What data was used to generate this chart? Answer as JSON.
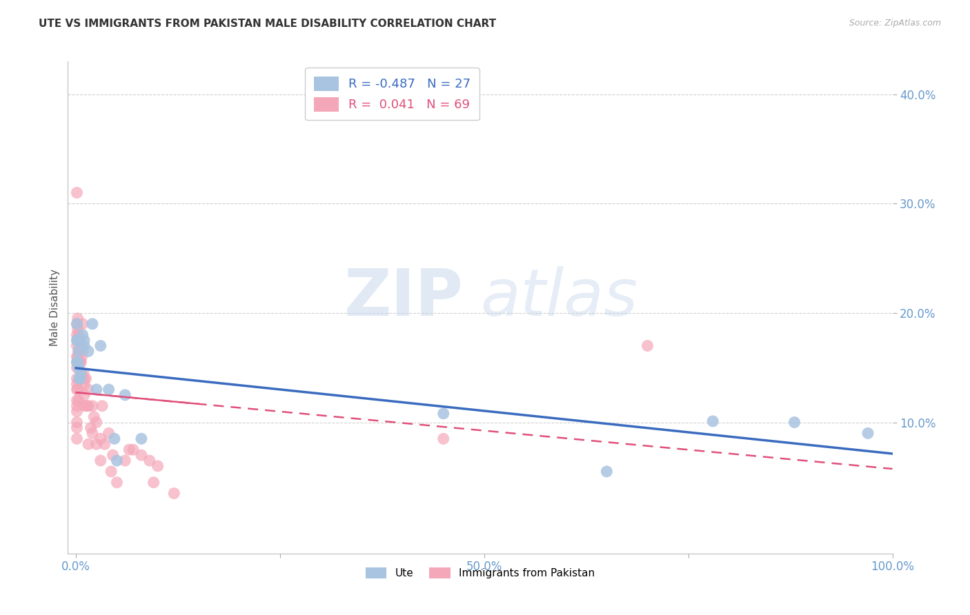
{
  "title": "UTE VS IMMIGRANTS FROM PAKISTAN MALE DISABILITY CORRELATION CHART",
  "source": "Source: ZipAtlas.com",
  "ylabel": "Male Disability",
  "xlim": [
    -0.01,
    1.0
  ],
  "ylim": [
    -0.02,
    0.43
  ],
  "xticks": [
    0.0,
    0.25,
    0.5,
    0.75,
    1.0
  ],
  "xticklabels": [
    "0.0%",
    "",
    "50.0%",
    "",
    "100.0%"
  ],
  "yticks": [
    0.1,
    0.2,
    0.3,
    0.4
  ],
  "yticklabels": [
    "10.0%",
    "20.0%",
    "30.0%",
    "40.0%"
  ],
  "ute_color": "#a8c4e0",
  "pakistan_color": "#f4a7b9",
  "ute_line_color": "#3a6bbf",
  "pakistan_line_color": "#e0507a",
  "legend_r_ute": "-0.487",
  "legend_n_ute": "27",
  "legend_r_pak": "0.041",
  "legend_n_pak": "69",
  "watermark_zip": "ZIP",
  "watermark_atlas": "atlas",
  "ute_points_x": [
    0.001,
    0.001,
    0.001,
    0.002,
    0.002,
    0.003,
    0.003,
    0.004,
    0.005,
    0.006,
    0.008,
    0.01,
    0.01,
    0.015,
    0.02,
    0.025,
    0.03,
    0.04,
    0.047,
    0.05,
    0.06,
    0.08,
    0.45,
    0.65,
    0.78,
    0.88,
    0.97
  ],
  "ute_points_y": [
    0.19,
    0.175,
    0.155,
    0.175,
    0.155,
    0.165,
    0.15,
    0.14,
    0.14,
    0.145,
    0.18,
    0.175,
    0.17,
    0.165,
    0.19,
    0.13,
    0.17,
    0.13,
    0.085,
    0.065,
    0.125,
    0.085,
    0.108,
    0.055,
    0.101,
    0.1,
    0.09
  ],
  "pak_points_x": [
    0.001,
    0.001,
    0.001,
    0.001,
    0.001,
    0.001,
    0.001,
    0.001,
    0.001,
    0.001,
    0.001,
    0.001,
    0.001,
    0.001,
    0.001,
    0.001,
    0.001,
    0.002,
    0.002,
    0.002,
    0.002,
    0.002,
    0.003,
    0.003,
    0.003,
    0.004,
    0.004,
    0.005,
    0.005,
    0.005,
    0.006,
    0.006,
    0.007,
    0.008,
    0.008,
    0.009,
    0.01,
    0.01,
    0.01,
    0.01,
    0.012,
    0.013,
    0.015,
    0.015,
    0.015,
    0.018,
    0.02,
    0.02,
    0.022,
    0.025,
    0.025,
    0.03,
    0.03,
    0.032,
    0.035,
    0.04,
    0.043,
    0.045,
    0.05,
    0.06,
    0.065,
    0.07,
    0.08,
    0.09,
    0.095,
    0.1,
    0.12,
    0.45,
    0.7
  ],
  "pak_points_y": [
    0.31,
    0.19,
    0.18,
    0.175,
    0.17,
    0.16,
    0.155,
    0.15,
    0.14,
    0.135,
    0.13,
    0.12,
    0.115,
    0.11,
    0.1,
    0.095,
    0.085,
    0.195,
    0.185,
    0.175,
    0.16,
    0.13,
    0.18,
    0.165,
    0.12,
    0.175,
    0.155,
    0.17,
    0.155,
    0.14,
    0.155,
    0.14,
    0.16,
    0.19,
    0.165,
    0.145,
    0.14,
    0.135,
    0.125,
    0.115,
    0.14,
    0.115,
    0.13,
    0.115,
    0.08,
    0.095,
    0.115,
    0.09,
    0.105,
    0.1,
    0.08,
    0.085,
    0.065,
    0.115,
    0.08,
    0.09,
    0.055,
    0.07,
    0.045,
    0.065,
    0.075,
    0.075,
    0.07,
    0.065,
    0.045,
    0.06,
    0.035,
    0.085,
    0.17
  ],
  "grid_color": "#d0d0d0",
  "tick_color": "#6699cc"
}
